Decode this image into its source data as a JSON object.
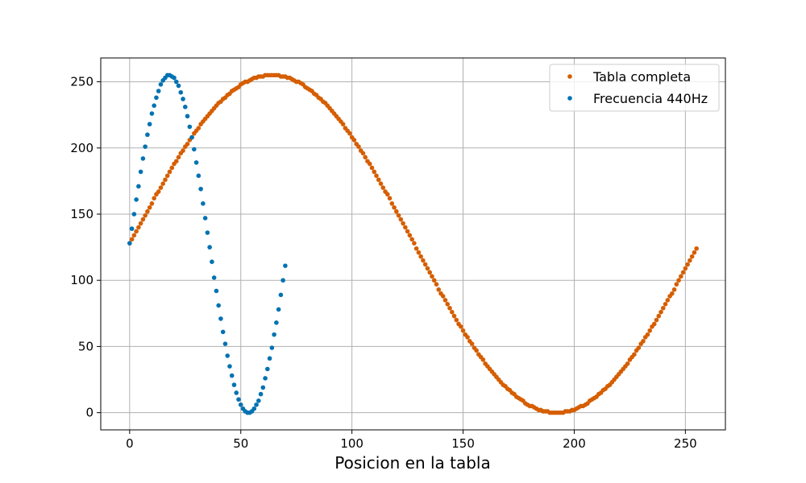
{
  "chart_data": {
    "type": "scatter",
    "title": "",
    "xlabel": "Posicion en la tabla",
    "ylabel": "",
    "xlim": [
      -13,
      268
    ],
    "ylim": [
      -13,
      268
    ],
    "xticks": [
      0,
      50,
      100,
      150,
      200,
      250
    ],
    "yticks": [
      0,
      50,
      100,
      150,
      200,
      250
    ],
    "xtick_labels": [
      "0",
      "50",
      "100",
      "150",
      "200",
      "250"
    ],
    "ytick_labels": [
      "0",
      "50",
      "100",
      "150",
      "200",
      "250"
    ],
    "grid": true,
    "legend_position": "top-right",
    "series": [
      {
        "name": "Tabla completa",
        "color": "#d55e00",
        "generator": "sine",
        "count": 256,
        "period": 256,
        "offset": 127.5,
        "amplitude": 127.5,
        "x_start": 0,
        "x_end": 255
      },
      {
        "name": "Frecuencia 440Hz",
        "color": "#0072b2",
        "generator": "sine",
        "count": 71,
        "period": 71.5,
        "offset": 127.5,
        "amplitude": 127.5,
        "x_start": 0,
        "x_end": 70
      }
    ]
  }
}
